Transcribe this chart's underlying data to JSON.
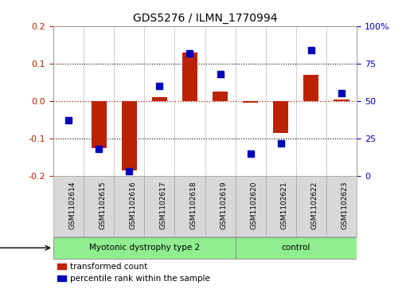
{
  "title": "GDS5276 / ILMN_1770994",
  "samples": [
    "GSM1102614",
    "GSM1102615",
    "GSM1102616",
    "GSM1102617",
    "GSM1102618",
    "GSM1102619",
    "GSM1102620",
    "GSM1102621",
    "GSM1102622",
    "GSM1102623"
  ],
  "red_values": [
    0.0,
    -0.125,
    -0.185,
    0.01,
    0.13,
    0.025,
    -0.005,
    -0.085,
    0.07,
    0.005
  ],
  "blue_values": [
    37,
    18,
    3,
    60,
    82,
    68,
    15,
    22,
    84,
    55
  ],
  "group1_label": "Myotonic dystrophy type 2",
  "group1_count": 6,
  "group2_label": "control",
  "group2_count": 4,
  "group_color": "#90EE90",
  "ylim_left": [
    -0.2,
    0.2
  ],
  "ylim_right": [
    0,
    100
  ],
  "yticks_left": [
    -0.2,
    -0.1,
    0.0,
    0.1,
    0.2
  ],
  "yticks_right": [
    0,
    25,
    50,
    75,
    100
  ],
  "ytick_labels_right": [
    "0",
    "25",
    "50",
    "75",
    "100%"
  ],
  "red_color": "#BB2200",
  "blue_color": "#0000BB",
  "bar_width": 0.5,
  "marker_size": 6,
  "sample_box_color": "#D8D8D8",
  "sample_box_edge": "#AAAAAA"
}
